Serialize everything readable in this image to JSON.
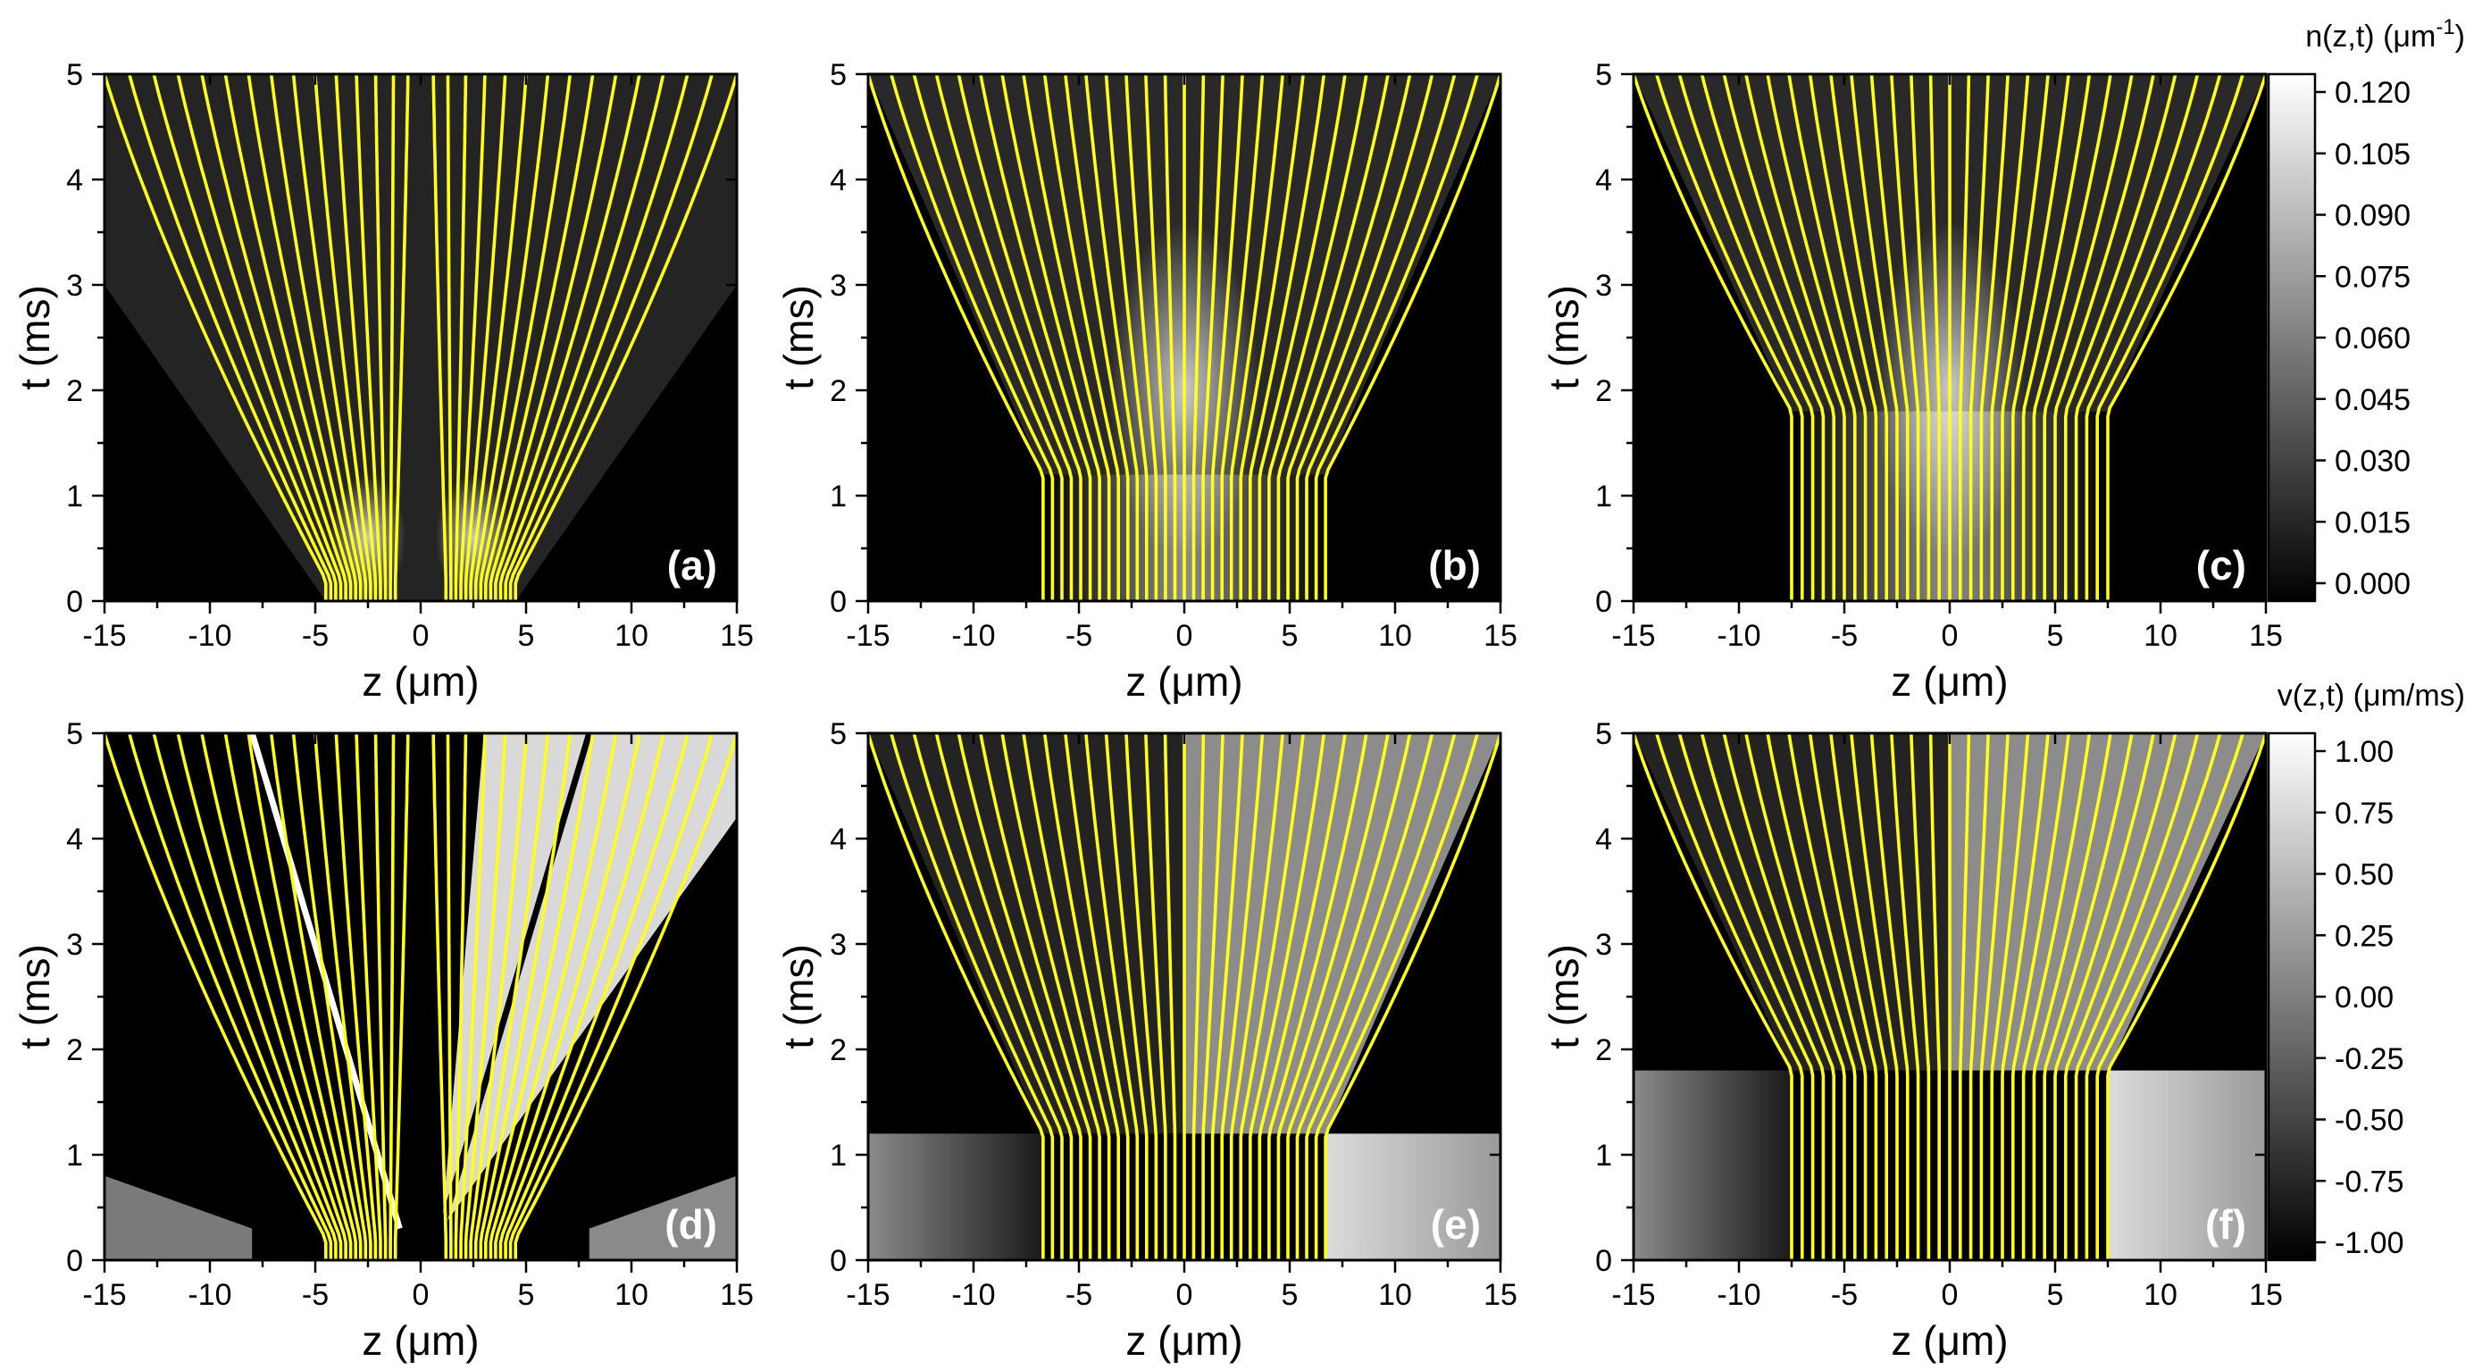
{
  "chart_data": [
    {
      "panel": "(a)",
      "type": "heatmap",
      "field": "density",
      "xlabel": "z (μm)",
      "ylabel": "t (ms)",
      "xlim": [
        -15,
        15
      ],
      "ylim": [
        0,
        5
      ],
      "xticks": [
        "-15",
        "-10",
        "-5",
        "0",
        "5",
        "10",
        "15"
      ],
      "yticks": [
        "0",
        "1",
        "2",
        "3",
        "4",
        "5"
      ],
      "trajectories": {
        "count": 30,
        "initial_region": "two lobes, |z| from about 1.2 to 4.5 μm",
        "spread_at_t5": [
          -15,
          15
        ]
      }
    },
    {
      "panel": "(b)",
      "type": "heatmap",
      "field": "density",
      "xlabel": "z (μm)",
      "ylabel": "t (ms)",
      "xlim": [
        -15,
        15
      ],
      "ylim": [
        0,
        5
      ],
      "xticks": [
        "-15",
        "-10",
        "-5",
        "0",
        "5",
        "10",
        "15"
      ],
      "yticks": [
        "0",
        "1",
        "2",
        "3",
        "4",
        "5"
      ],
      "trajectories": {
        "count": 31,
        "initial_region": [
          -6.7,
          6.7
        ],
        "release_time": 1.2,
        "spread_at_t5": [
          -15,
          15
        ]
      }
    },
    {
      "panel": "(c)",
      "type": "heatmap",
      "field": "density",
      "xlabel": "z (μm)",
      "ylabel": "t (ms)",
      "xlim": [
        -15,
        15
      ],
      "ylim": [
        0,
        5
      ],
      "xticks": [
        "-15",
        "-10",
        "-5",
        "0",
        "5",
        "10",
        "15"
      ],
      "yticks": [
        "0",
        "1",
        "2",
        "3",
        "4",
        "5"
      ],
      "trajectories": {
        "count": 31,
        "initial_region": [
          -7.5,
          7.5
        ],
        "release_time": 1.8,
        "spread_at_t5": [
          -15,
          15
        ]
      }
    },
    {
      "panel": "(d)",
      "type": "heatmap",
      "field": "velocity",
      "xlabel": "z (μm)",
      "ylabel": "t (ms)",
      "xlim": [
        -15,
        15
      ],
      "ylim": [
        0,
        5
      ],
      "xticks": [
        "-15",
        "-10",
        "-5",
        "0",
        "5",
        "10",
        "15"
      ],
      "yticks": [
        "0",
        "1",
        "2",
        "3",
        "4",
        "5"
      ],
      "trajectories": {
        "count": 30,
        "initial_region": "two lobes, |z| from about 1.2 to 4.5 μm",
        "spread_at_t5": [
          -15,
          15
        ]
      }
    },
    {
      "panel": "(e)",
      "type": "heatmap",
      "field": "velocity",
      "xlabel": "z (μm)",
      "ylabel": "t (ms)",
      "xlim": [
        -15,
        15
      ],
      "ylim": [
        0,
        5
      ],
      "xticks": [
        "-15",
        "-10",
        "-5",
        "0",
        "5",
        "10",
        "15"
      ],
      "yticks": [
        "0",
        "1",
        "2",
        "3",
        "4",
        "5"
      ],
      "trajectories": {
        "count": 31,
        "initial_region": [
          -6.7,
          6.7
        ],
        "release_time": 1.2,
        "spread_at_t5": [
          -15,
          15
        ]
      }
    },
    {
      "panel": "(f)",
      "type": "heatmap",
      "field": "velocity",
      "xlabel": "z (μm)",
      "ylabel": "t (ms)",
      "xlim": [
        -15,
        15
      ],
      "ylim": [
        0,
        5
      ],
      "xticks": [
        "-15",
        "-10",
        "-5",
        "0",
        "5",
        "10",
        "15"
      ],
      "yticks": [
        "0",
        "1",
        "2",
        "3",
        "4",
        "5"
      ],
      "trajectories": {
        "count": 31,
        "initial_region": [
          -7.5,
          7.5
        ],
        "release_time": 1.8,
        "spread_at_t5": [
          -15,
          15
        ]
      }
    }
  ],
  "colorbars": [
    {
      "title": "n(z,t)  (μm",
      "title_sup": "-1",
      "title_end": ")",
      "range": [
        0.0,
        0.12
      ],
      "ticks": [
        "0.120",
        "0.105",
        "0.090",
        "0.075",
        "0.060",
        "0.045",
        "0.030",
        "0.015",
        "0.000"
      ]
    },
    {
      "title": "v(z,t)  (μm/ms)",
      "range": [
        -1.0,
        1.0
      ],
      "ticks": [
        "1.00",
        "0.75",
        "0.50",
        "0.25",
        "0.00",
        "-0.25",
        "-0.50",
        "-0.75",
        "-1.00"
      ]
    }
  ],
  "colors": {
    "trajectory": "#ffff1a",
    "background": "#000000",
    "frame": "#000000"
  }
}
